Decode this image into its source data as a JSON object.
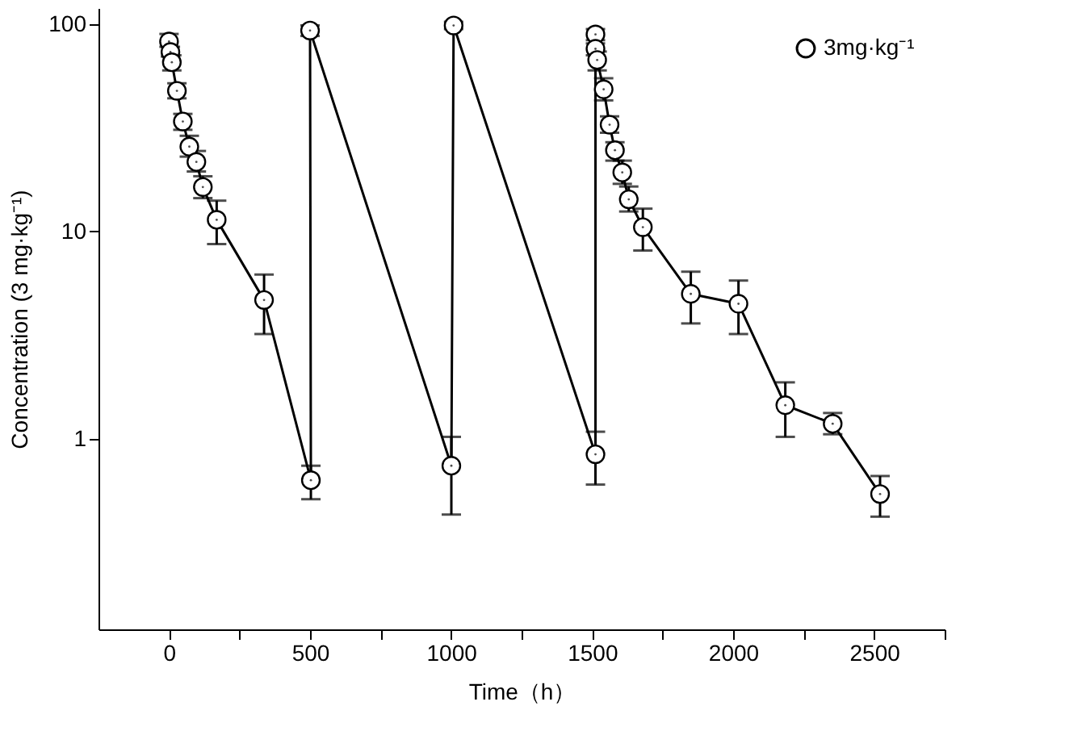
{
  "chart_data": {
    "type": "line",
    "xlabel": "Time（h）",
    "ylabel": "Concentration (3 mg·kg⁻¹)",
    "x": [
      0,
      5,
      10,
      28,
      49,
      72,
      97,
      120,
      169,
      337,
      503,
      500,
      1001,
      1009,
      1512,
      1512,
      1512,
      1518,
      1541,
      1562,
      1581,
      1607,
      1630,
      1680,
      1850,
      2019,
      2185,
      2353,
      2521
    ],
    "series": [
      {
        "name": "3mg·kg⁻¹",
        "color": "#000000",
        "values": [
          82.7,
          73.6,
          65.7,
          47.8,
          34,
          25.7,
          21.7,
          16.4,
          11.4,
          4.67,
          0.63,
          93.5,
          0.74,
          98.9,
          0.84,
          89.5,
          76.3,
          67.4,
          48.6,
          32.8,
          24.7,
          19.3,
          14.3,
          10.5,
          5.0,
          4.48,
          1.45,
          1.18,
          0.54
        ],
        "errors": [
          [
            78,
            90
          ],
          [
            70,
            78
          ],
          [
            60,
            71
          ],
          [
            44,
            52
          ],
          [
            31,
            37
          ],
          [
            23,
            29
          ],
          [
            19.5,
            24.5
          ],
          [
            14.5,
            18.5
          ],
          [
            8.7,
            14.1
          ],
          [
            3.2,
            6.2
          ],
          [
            0.51,
            0.74
          ],
          [
            88,
            99
          ],
          [
            0.43,
            1.02
          ],
          [
            95,
            103
          ],
          [
            0.6,
            1.08
          ],
          [
            84,
            95
          ],
          [
            71,
            81
          ],
          [
            60,
            74
          ],
          [
            43,
            55
          ],
          [
            30,
            36
          ],
          [
            22,
            27
          ],
          [
            17,
            22
          ],
          [
            12.5,
            16.5
          ],
          [
            8.1,
            12.9
          ],
          [
            3.6,
            6.4
          ],
          [
            3.2,
            5.8
          ],
          [
            1.02,
            1.87
          ],
          [
            1.05,
            1.33
          ],
          [
            0.42,
            0.66
          ]
        ]
      }
    ],
    "xlim": [
      -250,
      2750
    ],
    "xticks": [
      0,
      {
        "value": 250,
        "label": null
      },
      500,
      {
        "value": 750,
        "label": null
      },
      1000,
      {
        "value": 1250,
        "label": null
      },
      1500,
      {
        "value": 1750,
        "label": null
      },
      2000,
      {
        "value": 2250,
        "label": null
      },
      2500,
      {
        "value": 2750,
        "label": null
      }
    ],
    "ylim": [
      0.12,
      120
    ],
    "yticks": [
      1,
      10,
      100
    ],
    "log": true,
    "grid": false,
    "legend": "top right",
    "marker": "circle",
    "line_style": "solid"
  }
}
